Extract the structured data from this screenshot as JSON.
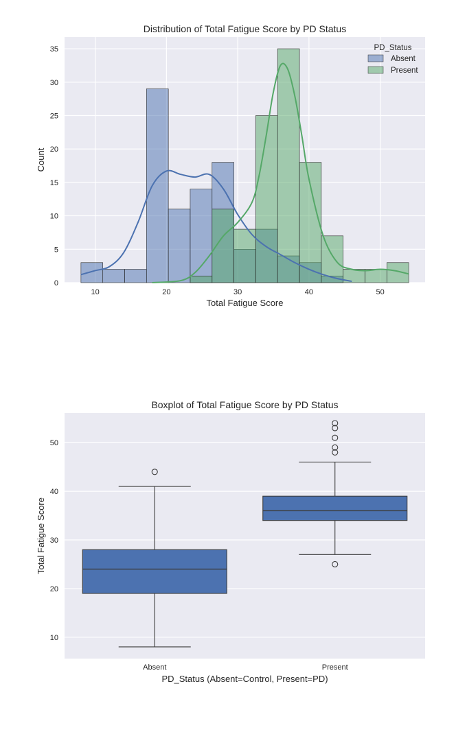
{
  "chart_data": [
    {
      "type": "bar",
      "subtype": "histogram-with-kde",
      "title": "Distribution of Total Fatigue Score by PD Status",
      "xlabel": "Total Fatigue Score",
      "ylabel": "Count",
      "xlim": [
        5.7,
        56.3
      ],
      "ylim": [
        0,
        36.75
      ],
      "xticks": [
        "10",
        "20",
        "30",
        "40",
        "50"
      ],
      "yticks": [
        "0",
        "5",
        "10",
        "15",
        "20",
        "25",
        "30",
        "35"
      ],
      "grid": true,
      "legend": {
        "title": "PD_Status",
        "placement": "top-right",
        "entries": [
          "Absent",
          "Present"
        ]
      },
      "bin_edges": [
        8,
        11.07,
        14.13,
        17.2,
        20.27,
        23.33,
        26.4,
        29.47,
        32.53,
        35.6,
        38.67,
        41.73,
        44.8,
        47.87,
        50.93,
        54
      ],
      "series": [
        {
          "name": "Absent",
          "color": "#4c72b0",
          "counts": [
            3,
            2,
            2,
            29,
            11,
            14,
            18,
            5,
            8,
            4,
            3,
            1,
            0,
            0,
            0
          ],
          "kde": {
            "x": [
              8,
              10,
              12,
              14,
              16,
              18,
              20,
              22,
              24,
              26,
              28,
              30,
              32,
              34,
              36,
              38,
              40,
              42,
              44,
              46
            ],
            "y": [
              1.2,
              1.8,
              2.4,
              4.5,
              9,
              14.5,
              16.7,
              16.2,
              15.8,
              16.2,
              14,
              10.2,
              7.2,
              5.4,
              4.2,
              3,
              2,
              1.2,
              0.6,
              0.2
            ]
          }
        },
        {
          "name": "Present",
          "color": "#55a868",
          "counts": [
            0,
            0,
            0,
            0,
            0,
            1,
            11,
            8,
            25,
            35,
            18,
            7,
            2,
            2,
            3
          ],
          "kde": {
            "x": [
              18,
              22,
              24,
              26,
              28,
              30,
              32,
              33,
              34,
              35,
              36,
              37,
              38,
              39,
              40,
              42,
              44,
              46,
              48,
              50,
              52,
              54
            ],
            "y": [
              0,
              0.3,
              1.5,
              4,
              7,
              9,
              12,
              16,
              22,
              28.5,
              32.5,
              32,
              28,
              22,
              15.5,
              7,
              3,
              2,
              1.8,
              2,
              1.8,
              1.3
            ]
          }
        }
      ]
    },
    {
      "type": "box",
      "title": "Boxplot of Total Fatigue Score by PD Status",
      "xlabel": "PD_Status (Absent=Control, Present=PD)",
      "ylabel": "Total Fatigue Score",
      "ylim": [
        5.6,
        56.1
      ],
      "yticks": [
        "10",
        "20",
        "30",
        "40",
        "50"
      ],
      "categories": [
        "Absent",
        "Present"
      ],
      "color": "#4c72b0",
      "grid": true,
      "boxes": [
        {
          "category": "Absent",
          "whisker_low": 8,
          "q1": 19,
          "median": 24,
          "q3": 28,
          "whisker_high": 41,
          "outliers": [
            44
          ]
        },
        {
          "category": "Present",
          "whisker_low": 27,
          "q1": 34,
          "median": 36,
          "q3": 39,
          "whisker_high": 46,
          "outliers": [
            25,
            48,
            49,
            51,
            53,
            54
          ]
        }
      ]
    }
  ]
}
